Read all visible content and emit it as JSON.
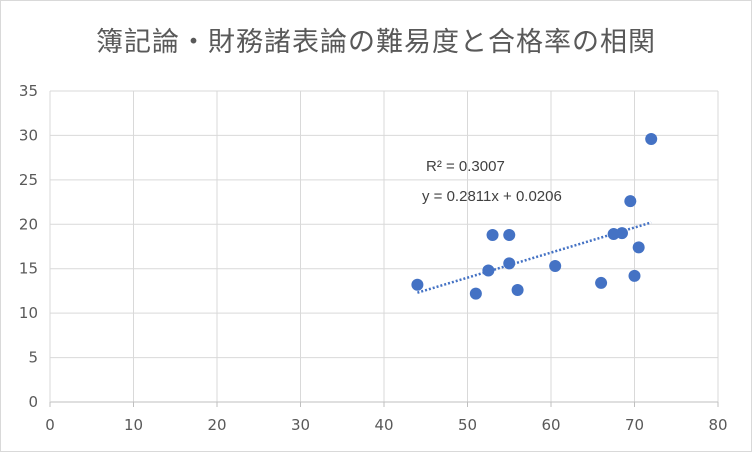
{
  "chart_data": {
    "type": "scatter",
    "title": "簿記論・財務諸表論の難易度と合格率の相関",
    "xlabel": "",
    "ylabel": "",
    "xlim": [
      0,
      80
    ],
    "ylim": [
      0,
      35
    ],
    "x_ticks": [
      "0",
      "10",
      "20",
      "30",
      "40",
      "50",
      "60",
      "70",
      "80"
    ],
    "y_ticks": [
      "0",
      "5",
      "10",
      "15",
      "20",
      "25",
      "30",
      "35"
    ],
    "grid": true,
    "legend": "none",
    "marker_color": "#4472c4",
    "points": [
      {
        "x": 44.0,
        "y": 13.2
      },
      {
        "x": 51.0,
        "y": 12.2
      },
      {
        "x": 52.5,
        "y": 14.8
      },
      {
        "x": 53.0,
        "y": 18.8
      },
      {
        "x": 55.0,
        "y": 18.8
      },
      {
        "x": 55.0,
        "y": 15.6
      },
      {
        "x": 56.0,
        "y": 12.6
      },
      {
        "x": 60.5,
        "y": 15.3
      },
      {
        "x": 66.0,
        "y": 13.4
      },
      {
        "x": 67.5,
        "y": 18.9
      },
      {
        "x": 68.5,
        "y": 19.0
      },
      {
        "x": 69.5,
        "y": 22.6
      },
      {
        "x": 70.0,
        "y": 14.2
      },
      {
        "x": 70.5,
        "y": 17.4
      },
      {
        "x": 72.0,
        "y": 29.6
      }
    ],
    "trendline": {
      "type": "linear",
      "x_range": [
        44,
        72
      ],
      "y_range": [
        12.3,
        20.2
      ],
      "equation": "y = 0.2811x + 0.0206",
      "r_squared": "R² = 0.3007"
    }
  }
}
